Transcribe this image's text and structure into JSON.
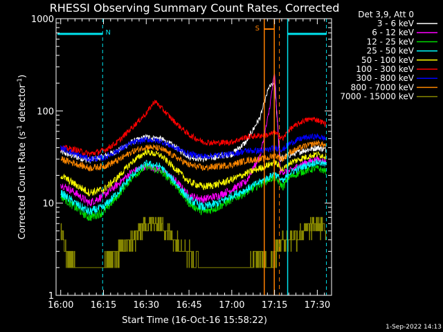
{
  "colors": {
    "background": "#000000",
    "foreground": "#ffffff",
    "cyan": "#00e5f0",
    "orange": "#ff8000"
  },
  "chart_data": {
    "type": "line",
    "title": "RHESSI Observing Summary Count Rates, Corrected",
    "xlabel": "Start Time (16-Oct-16 15:58:22)",
    "ylabel": "Corrected Count Rate (s⁻¹ detector⁻¹)",
    "ylabel_parts": {
      "base": "Corrected Count Rate (s",
      "exp1": "-1",
      "mid": " detector",
      "exp2": "-1",
      "end": ")"
    },
    "y_scale": "log",
    "ylim": [
      1,
      1000
    ],
    "xlim_minutes": [
      -1.63,
      95
    ],
    "x_ticks": [
      {
        "label": "16:00",
        "minute": 0
      },
      {
        "label": "16:15",
        "minute": 15
      },
      {
        "label": "16:30",
        "minute": 30
      },
      {
        "label": "16:45",
        "minute": 45
      },
      {
        "label": "17:00",
        "minute": 60
      },
      {
        "label": "17:15",
        "minute": 75
      },
      {
        "label": "17:30",
        "minute": 90
      }
    ],
    "y_ticks": [
      {
        "label": "1",
        "value": 1
      },
      {
        "label": "10",
        "value": 10
      },
      {
        "label": "100",
        "value": 100
      },
      {
        "label": "1000",
        "value": 1000
      }
    ],
    "legend_header": "Det 3,9, Att 0",
    "legend_position": "right",
    "annotations": {
      "night_label": "N",
      "saa_label": "S",
      "footer": "1-Sep-2022 14:13"
    },
    "markers_minutes": {
      "night_left_end": 14.7,
      "night_right_start": 79.6,
      "night_right_end": 93.2,
      "saa_start": 71.4,
      "saa_end": 74.9,
      "orange_dashed": 76.7
    },
    "series": [
      {
        "name": "3 - 6 keV",
        "color": "#ffffff",
        "points": [
          [
            0,
            36
          ],
          [
            5,
            32
          ],
          [
            10,
            29
          ],
          [
            15,
            32
          ],
          [
            20,
            37
          ],
          [
            25,
            46
          ],
          [
            30,
            52
          ],
          [
            35,
            50
          ],
          [
            40,
            41
          ],
          [
            45,
            32
          ],
          [
            50,
            30
          ],
          [
            55,
            32
          ],
          [
            60,
            34
          ],
          [
            65,
            46
          ],
          [
            70,
            86
          ],
          [
            73,
            180
          ],
          [
            75,
            200
          ],
          [
            77,
            30
          ],
          [
            80,
            33
          ],
          [
            85,
            37
          ],
          [
            90,
            40
          ],
          [
            93,
            38
          ]
        ]
      },
      {
        "name": "6 - 12 keV",
        "color": "#ff00ff",
        "points": [
          [
            0,
            16
          ],
          [
            5,
            13
          ],
          [
            10,
            10
          ],
          [
            15,
            12
          ],
          [
            20,
            16
          ],
          [
            25,
            22
          ],
          [
            30,
            25
          ],
          [
            35,
            23
          ],
          [
            40,
            18
          ],
          [
            45,
            12
          ],
          [
            50,
            11
          ],
          [
            55,
            12
          ],
          [
            60,
            14
          ],
          [
            65,
            17
          ],
          [
            70,
            33
          ],
          [
            73,
            95
          ],
          [
            75,
            260
          ],
          [
            77,
            22
          ],
          [
            80,
            22
          ],
          [
            85,
            27
          ],
          [
            90,
            30
          ],
          [
            93,
            28
          ]
        ]
      },
      {
        "name": "12 - 25 keV",
        "color": "#00dd00",
        "points": [
          [
            0,
            12
          ],
          [
            5,
            9
          ],
          [
            10,
            7
          ],
          [
            15,
            8
          ],
          [
            20,
            12
          ],
          [
            25,
            19
          ],
          [
            30,
            25
          ],
          [
            35,
            22
          ],
          [
            40,
            16
          ],
          [
            45,
            10
          ],
          [
            50,
            8
          ],
          [
            55,
            9
          ],
          [
            60,
            11
          ],
          [
            65,
            13
          ],
          [
            70,
            16
          ],
          [
            73,
            18
          ],
          [
            75,
            19
          ],
          [
            78,
            15
          ],
          [
            80,
            19
          ],
          [
            85,
            22
          ],
          [
            90,
            24
          ],
          [
            93,
            22
          ]
        ]
      },
      {
        "name": "25 - 50 keV",
        "color": "#00ffff",
        "points": [
          [
            0,
            13
          ],
          [
            5,
            10
          ],
          [
            10,
            8
          ],
          [
            15,
            9
          ],
          [
            20,
            13
          ],
          [
            25,
            20
          ],
          [
            30,
            27
          ],
          [
            35,
            25
          ],
          [
            40,
            17
          ],
          [
            45,
            11
          ],
          [
            50,
            9
          ],
          [
            55,
            10
          ],
          [
            60,
            12
          ],
          [
            65,
            14
          ],
          [
            70,
            17
          ],
          [
            73,
            19
          ],
          [
            75,
            21
          ],
          [
            78,
            17
          ],
          [
            80,
            21
          ],
          [
            85,
            25
          ],
          [
            90,
            28
          ],
          [
            93,
            26
          ]
        ]
      },
      {
        "name": "50 - 100 keV",
        "color": "#ffff00",
        "points": [
          [
            0,
            20
          ],
          [
            5,
            16
          ],
          [
            10,
            13
          ],
          [
            15,
            14
          ],
          [
            20,
            19
          ],
          [
            25,
            28
          ],
          [
            30,
            36
          ],
          [
            35,
            33
          ],
          [
            40,
            24
          ],
          [
            45,
            17
          ],
          [
            50,
            15
          ],
          [
            55,
            16
          ],
          [
            60,
            18
          ],
          [
            65,
            21
          ],
          [
            70,
            24
          ],
          [
            73,
            26
          ],
          [
            75,
            28
          ],
          [
            78,
            23
          ],
          [
            80,
            27
          ],
          [
            85,
            31
          ],
          [
            90,
            34
          ],
          [
            93,
            32
          ]
        ]
      },
      {
        "name": "100 - 300 keV",
        "color": "#ff0000",
        "points": [
          [
            0,
            40
          ],
          [
            5,
            38
          ],
          [
            10,
            34
          ],
          [
            15,
            37
          ],
          [
            20,
            46
          ],
          [
            25,
            66
          ],
          [
            30,
            94
          ],
          [
            33,
            128
          ],
          [
            35,
            110
          ],
          [
            40,
            76
          ],
          [
            45,
            55
          ],
          [
            50,
            46
          ],
          [
            55,
            45
          ],
          [
            60,
            46
          ],
          [
            65,
            52
          ],
          [
            70,
            54
          ],
          [
            73,
            55
          ],
          [
            75,
            58
          ],
          [
            78,
            50
          ],
          [
            80,
            62
          ],
          [
            85,
            78
          ],
          [
            88,
            82
          ],
          [
            90,
            80
          ],
          [
            93,
            72
          ]
        ]
      },
      {
        "name": "300 - 800 keV",
        "color": "#0000ff",
        "points": [
          [
            0,
            40
          ],
          [
            5,
            34
          ],
          [
            10,
            30
          ],
          [
            15,
            31
          ],
          [
            20,
            37
          ],
          [
            25,
            45
          ],
          [
            30,
            49
          ],
          [
            35,
            47
          ],
          [
            40,
            40
          ],
          [
            45,
            34
          ],
          [
            50,
            32
          ],
          [
            55,
            33
          ],
          [
            60,
            34
          ],
          [
            65,
            37
          ],
          [
            70,
            37
          ],
          [
            73,
            38
          ],
          [
            75,
            40
          ],
          [
            78,
            38
          ],
          [
            80,
            44
          ],
          [
            85,
            51
          ],
          [
            90,
            53
          ],
          [
            93,
            50
          ]
        ]
      },
      {
        "name": "800 - 7000 keV",
        "color": "#ff8800",
        "points": [
          [
            0,
            30
          ],
          [
            5,
            27
          ],
          [
            10,
            24
          ],
          [
            15,
            25
          ],
          [
            20,
            29
          ],
          [
            25,
            36
          ],
          [
            30,
            41
          ],
          [
            35,
            39
          ],
          [
            40,
            32
          ],
          [
            45,
            26
          ],
          [
            50,
            24
          ],
          [
            55,
            25
          ],
          [
            60,
            26
          ],
          [
            65,
            29
          ],
          [
            70,
            30
          ],
          [
            73,
            31
          ],
          [
            75,
            33
          ],
          [
            78,
            30
          ],
          [
            80,
            35
          ],
          [
            85,
            41
          ],
          [
            90,
            45
          ],
          [
            93,
            42
          ]
        ]
      },
      {
        "name": "7000 - 15000 keV",
        "color": "#888800",
        "points": [
          [
            0,
            5
          ],
          [
            2,
            3
          ],
          [
            5,
            2
          ],
          [
            10,
            2
          ],
          [
            15,
            2
          ],
          [
            20,
            3
          ],
          [
            25,
            4
          ],
          [
            30,
            6
          ],
          [
            35,
            6
          ],
          [
            40,
            4
          ],
          [
            45,
            3
          ],
          [
            50,
            2
          ],
          [
            55,
            2
          ],
          [
            60,
            2
          ],
          [
            65,
            2
          ],
          [
            70,
            3
          ],
          [
            73,
            2
          ],
          [
            75,
            3
          ],
          [
            78,
            4
          ],
          [
            80,
            4
          ],
          [
            85,
            5
          ],
          [
            90,
            6
          ],
          [
            93,
            5
          ]
        ]
      }
    ]
  }
}
